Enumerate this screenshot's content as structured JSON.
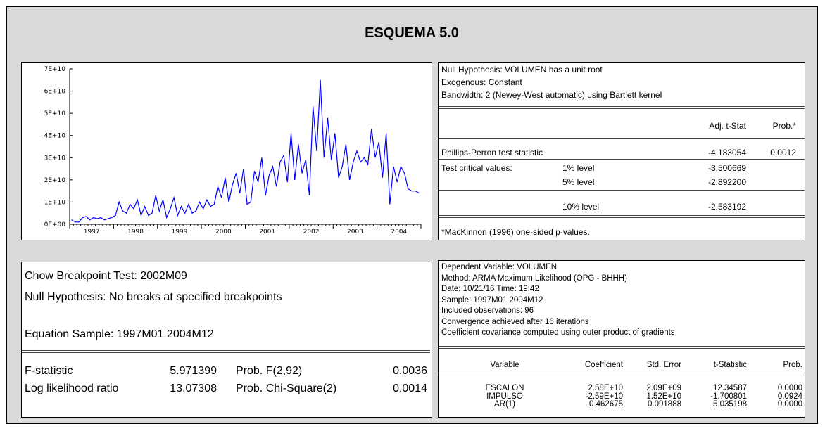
{
  "title": "ESQUEMA 5.0",
  "chart_data": {
    "type": "line",
    "categories": [
      null,
      null,
      null,
      null,
      null,
      null,
      "1997",
      null,
      null,
      null,
      null,
      null,
      null,
      null,
      null,
      null,
      null,
      null,
      "1998",
      null,
      null,
      null,
      null,
      null,
      null,
      null,
      null,
      null,
      null,
      null,
      "1999",
      null,
      null,
      null,
      null,
      null,
      null,
      null,
      null,
      null,
      null,
      null,
      "2000",
      null,
      null,
      null,
      null,
      null,
      null,
      null,
      null,
      null,
      null,
      null,
      "2001",
      null,
      null,
      null,
      null,
      null,
      null,
      null,
      null,
      null,
      null,
      null,
      "2002",
      null,
      null,
      null,
      null,
      null,
      null,
      null,
      null,
      null,
      null,
      null,
      "2003",
      null,
      null,
      null,
      null,
      null,
      null,
      null,
      null,
      null,
      null,
      null,
      "2004",
      null,
      null,
      null,
      null,
      null
    ],
    "values": [
      2000000000.0,
      1000000000.0,
      1000000000.0,
      3000000000.0,
      3500000000.0,
      2000000000.0,
      3000000000.0,
      2500000000.0,
      3000000000.0,
      2000000000.0,
      2500000000.0,
      3000000000.0,
      4000000000.0,
      10000000000.0,
      6000000000.0,
      5000000000.0,
      9000000000.0,
      7000000000.0,
      11000000000.0,
      4000000000.0,
      8000000000.0,
      4000000000.0,
      5000000000.0,
      13000000000.0,
      6000000000.0,
      11000000000.0,
      3000000000.0,
      7000000000.0,
      12000000000.0,
      4000000000.0,
      8000000000.0,
      5000000000.0,
      9000000000.0,
      5000000000.0,
      6000000000.0,
      10000000000.0,
      7000000000.0,
      11000000000.0,
      8000000000.0,
      9000000000.0,
      17000000000.0,
      12000000000.0,
      21000000000.0,
      10000000000.0,
      18000000000.0,
      23000000000.0,
      14000000000.0,
      25000000000.0,
      9000000000.0,
      10000000000.0,
      24000000000.0,
      19000000000.0,
      30000000000.0,
      13000000000.0,
      22000000000.0,
      26000000000.0,
      17000000000.0,
      28000000000.0,
      31000000000.0,
      19000000000.0,
      41000000000.0,
      20000000000.0,
      36000000000.0,
      23000000000.0,
      29000000000.0,
      13000000000.0,
      53000000000.0,
      33000000000.0,
      65000000000.0,
      30000000000.0,
      48000000000.0,
      29000000000.0,
      41000000000.0,
      21000000000.0,
      26000000000.0,
      36000000000.0,
      20000000000.0,
      28000000000.0,
      33000000000.0,
      28000000000.0,
      30000000000.0,
      27000000000.0,
      43000000000.0,
      30000000000.0,
      37000000000.0,
      21000000000.0,
      41000000000.0,
      9000000000.0,
      26000000000.0,
      19000000000.0,
      26000000000.0,
      23000000000.0,
      16000000000.0,
      15000000000.0,
      15000000000.0,
      14000000000.0
    ],
    "color": "#0000ff",
    "ylim": [
      0,
      70000000000.0
    ],
    "yticks": [
      {
        "value": 0,
        "label": "0E+00"
      },
      {
        "value": 10000000000.0,
        "label": "1E+10"
      },
      {
        "value": 20000000000.0,
        "label": "2E+10"
      },
      {
        "value": 30000000000.0,
        "label": "3E+10"
      },
      {
        "value": 40000000000.0,
        "label": "4E+10"
      },
      {
        "value": 50000000000.0,
        "label": "5E+10"
      },
      {
        "value": 60000000000.0,
        "label": "6E+10"
      },
      {
        "value": 70000000000.0,
        "label": "7E+10"
      }
    ]
  },
  "unit_root_test": {
    "header": [
      "Null Hypothesis: VOLUMEN has a unit root",
      "Exogenous: Constant",
      "Bandwidth: 2 (Newey-West automatic) using Bartlett kernel"
    ],
    "columns": [
      "Adj. t-Stat",
      "Prob.*"
    ],
    "rows": [
      {
        "label": "Phillips-Perron test statistic",
        "t_stat": "-4.183054",
        "prob": "0.0012"
      },
      {
        "label": "Test critical values:",
        "level": "1% level",
        "t_stat": "-3.500669"
      },
      {
        "level": "5% level",
        "t_stat": "-2.892200"
      },
      {
        "level": "10% level",
        "t_stat": "-2.583192"
      }
    ],
    "footnote": "*MacKinnon (1996) one-sided p-values."
  },
  "chow_test": {
    "lines": [
      "Chow Breakpoint Test: 2002M09",
      "Null Hypothesis: No breaks at specified breakpoints",
      "Equation Sample: 1997M01 2004M12"
    ],
    "rows": [
      {
        "label": "F-statistic",
        "value": "5.971399",
        "prob_label": "Prob. F(2,92)",
        "prob": "0.0036"
      },
      {
        "label": "Log likelihood ratio",
        "value": "13.07308",
        "prob_label": "Prob. Chi-Square(2)",
        "prob": "0.0014"
      }
    ]
  },
  "arma": {
    "header": [
      "Dependent Variable: VOLUMEN",
      "Method: ARMA Maximum Likelihood (OPG - BHHH)",
      "Date: 10/21/16   Time: 19:42",
      "Sample: 1997M01 2004M12",
      "Included observations: 96",
      "Convergence achieved after 16 iterations",
      "Coefficient covariance computed using outer product of gradients"
    ],
    "columns": [
      "Variable",
      "Coefficient",
      "Std. Error",
      "t-Statistic",
      "Prob."
    ],
    "rows": [
      [
        "ESCALON",
        "2.58E+10",
        "2.09E+09",
        "12.34587",
        "0.0000"
      ],
      [
        "IMPULSO",
        "-2.59E+10",
        "1.52E+10",
        "-1.700801",
        "0.0924"
      ],
      [
        "AR(1)",
        "0.462675",
        "0.091888",
        "5.035198",
        "0.0000"
      ]
    ]
  }
}
